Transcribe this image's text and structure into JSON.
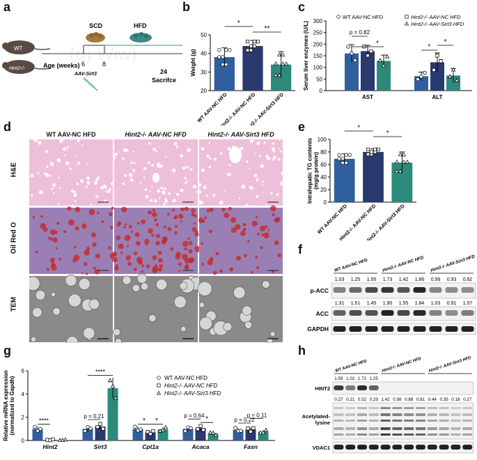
{
  "panels": {
    "a": "a",
    "b": "b",
    "c": "c",
    "d": "d",
    "e": "e",
    "f": "f",
    "g": "g",
    "h": "h"
  },
  "colors": {
    "wt": "#2f5f9e",
    "hint2": "#2a3a6e",
    "sirt3": "#2c8a7a",
    "he_bg": "#eebfd9",
    "oil_bg": "#9a7fb4",
    "oil_red": "#c62a2a",
    "tem_bg": "#8a8a8a",
    "blot_bg": "#f2f2f2",
    "blot_band": "#222222"
  },
  "panel_a": {
    "mouse_wt": "WT",
    "mouse_ko": "Hint2-/-",
    "diet_scd": "SCD",
    "diet_hfd": "HFD",
    "timeline_label": "Age (weeks)",
    "ticks": [
      "6",
      "8",
      "24"
    ],
    "sacrifice": "Sacrifce",
    "injection": "AAV-Sirt3",
    "faint_text": "(g) Wiw)"
  },
  "panel_d": {
    "col_titles": [
      "WT AAV-NC HFD",
      "Hint2-/- AAV-NC HFD",
      "Hint2-/- AAV-Sirt3 HFD"
    ],
    "row_labels": [
      "H&E",
      "Oil Red O",
      "TEM"
    ]
  },
  "chart_data": [
    {
      "id": "b",
      "type": "bar",
      "categories": [
        "WT AAV-NC HFD",
        "Hint2-/- AAV-NC HFD",
        "Hint2-/- AAV-Sirt3 HFD"
      ],
      "values": [
        38,
        44,
        34
      ],
      "errors": [
        5,
        3,
        7
      ],
      "ylabel": "Weight (g)",
      "ylim": [
        20,
        50
      ],
      "yticks": [
        20,
        30,
        40,
        50
      ],
      "significance": [
        {
          "pair": [
            0,
            1
          ],
          "label": "*"
        },
        {
          "pair": [
            1,
            2
          ],
          "label": "**"
        }
      ]
    },
    {
      "id": "c",
      "type": "bar",
      "categories": [
        "AST",
        "ALT"
      ],
      "series": [
        {
          "name": "WT AAV-NC HFD",
          "values": [
            160,
            62
          ],
          "errors": [
            38,
            18
          ]
        },
        {
          "name": "Hint2-/- AAV-NC HFD",
          "values": [
            170,
            122
          ],
          "errors": [
            25,
            40
          ]
        },
        {
          "name": "Hint2-/- AAV-Sirt3 HFD",
          "values": [
            128,
            65
          ],
          "errors": [
            25,
            30
          ]
        }
      ],
      "ylabel": "Serum liver enzymes (U/L)",
      "ylim": [
        0,
        300
      ],
      "yticks": [
        0,
        50,
        100,
        150,
        200,
        250,
        300
      ],
      "annotations": [
        "p = 0.82",
        "*",
        "*",
        "*"
      ],
      "legend": "top-right"
    },
    {
      "id": "e",
      "type": "bar",
      "categories": [
        "WT AAV-NC HFD",
        "Hint2-/- AAV-NC HFD",
        "Hint2-/- AAV-Sirt3 HFD"
      ],
      "values": [
        69,
        80,
        63
      ],
      "errors": [
        8,
        5,
        17
      ],
      "ylabel": "Intrahepatic TG contents (mg/g protein)",
      "ylim": [
        0,
        100
      ],
      "yticks": [
        0,
        20,
        40,
        60,
        80,
        100
      ],
      "significance": [
        {
          "pair": [
            0,
            1
          ],
          "label": "*"
        },
        {
          "pair": [
            1,
            2
          ],
          "label": "*"
        }
      ]
    },
    {
      "id": "g",
      "type": "bar",
      "categories": [
        "Hint2",
        "Sirt3",
        "Cpt1a",
        "Acaca",
        "Fasn"
      ],
      "series": [
        {
          "name": "WT AAV-NC HFD",
          "values": [
            1.0,
            1.0,
            1.0,
            1.0,
            0.9
          ]
        },
        {
          "name": "Hint2-/- AAV-NC HFD",
          "values": [
            0.05,
            1.2,
            0.7,
            1.05,
            0.95
          ]
        },
        {
          "name": "Hint2-/- AAV-Sirt3 HFD",
          "values": [
            0.03,
            4.5,
            0.95,
            0.6,
            0.75
          ]
        }
      ],
      "ylabel": "Relative mRNA expression (normalized to Gapdh)",
      "ylim": [
        0,
        6
      ],
      "yticks": [
        0,
        2,
        4,
        6
      ],
      "annotations": [
        "****",
        "****",
        "p = 0.21",
        "*",
        "*",
        "p = 0.64",
        "*",
        "p = 0.22",
        "p = 0.11"
      ],
      "legend": "top-right"
    }
  ],
  "panel_f": {
    "lanes": [
      "WT AAV-NC HFD",
      "Hint2-/- AAV-NC HFD",
      "Hint2-/- AAV-Sirt3 HFD"
    ],
    "pacc_values": [
      "1.03",
      "1.25",
      "1.55",
      "1.73",
      "1.42",
      "1.86",
      "0.99",
      "0.93",
      "0.92"
    ],
    "acc_values": [
      "1.31",
      "1.51",
      "1.45",
      "1.90",
      "1.55",
      "1.84",
      "1.03",
      "0.91",
      "1.07"
    ],
    "rows": [
      "p-ACC",
      "ACC",
      "GAPDH"
    ]
  },
  "panel_h": {
    "lanes": [
      "WT AAV-NC HFD",
      "Hint2-/- AAV-NC HFD",
      "Hint2-/- AAV-Sirt3 HFD"
    ],
    "hint2_values": [
      "1.59",
      "1.02",
      "1.72",
      "1.25"
    ],
    "acetyl_values": [
      "0.27",
      "0.21",
      "0.52",
      "0.29",
      "1.42",
      "0.98",
      "0.88",
      "0.81",
      "0.44",
      "0.35",
      "0.18",
      "0.27"
    ],
    "rows": [
      "HINT2",
      "Acetylated-lysine",
      "VDAC1"
    ]
  }
}
